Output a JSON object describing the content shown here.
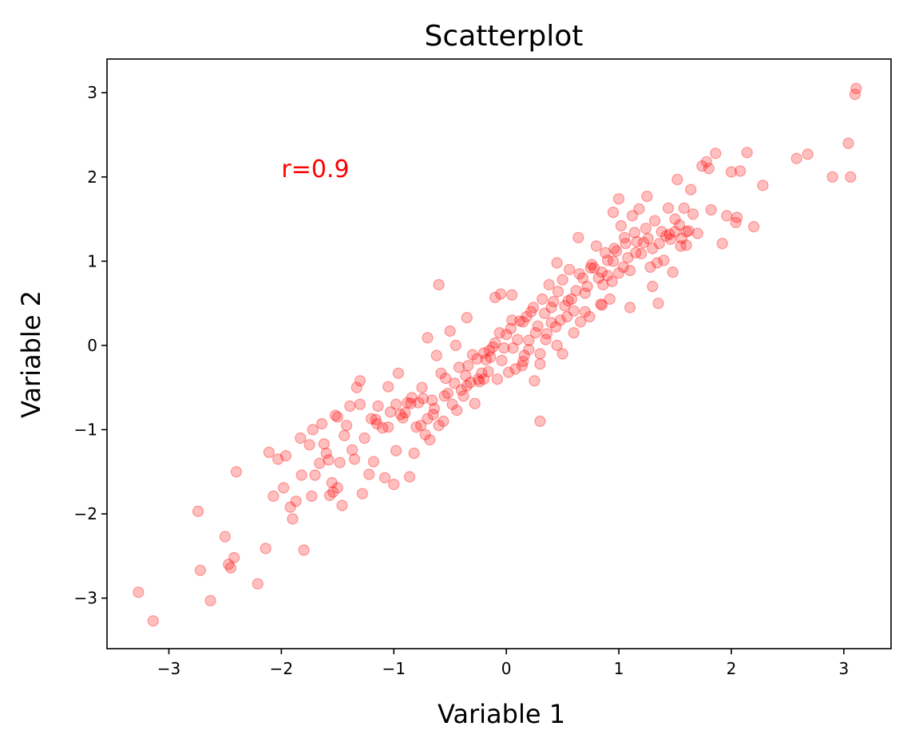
{
  "chart_data": {
    "type": "scatter",
    "title": "Scatterplot",
    "xlabel": "Variable 1",
    "ylabel": "Variable 2",
    "xlim": [
      -3.55,
      3.42
    ],
    "ylim": [
      -3.6,
      3.4
    ],
    "xticks": [
      -3,
      -2,
      -1,
      0,
      1,
      2,
      3
    ],
    "yticks": [
      -3,
      -2,
      -1,
      0,
      1,
      2,
      3
    ],
    "xtick_labels": [
      "−3",
      "−2",
      "−1",
      "0",
      "1",
      "2",
      "3"
    ],
    "ytick_labels": [
      "−3",
      "−2",
      "−1",
      "0",
      "1",
      "2",
      "3"
    ],
    "grid": false,
    "marker_color": "#ff0000",
    "marker_alpha": 0.25,
    "annotation": {
      "text": "r=0.9",
      "x": -2.0,
      "y": 2.0,
      "color": "#ff0000"
    },
    "series": [
      {
        "x": [
          -3.27,
          -3.14,
          -2.74,
          -2.72,
          -2.63,
          -2.5,
          -2.47,
          -2.45,
          -2.42,
          -2.4,
          -2.21,
          -2.14,
          -2.11,
          -2.07,
          -2.03,
          -1.98,
          -1.96,
          -1.92,
          -1.9,
          -1.87,
          -1.83,
          -1.82,
          -1.8,
          -1.75,
          -1.73,
          -1.72,
          -1.7,
          -1.66,
          -1.64,
          -1.62,
          -1.6,
          -1.58,
          -1.57,
          -1.55,
          -1.54,
          -1.52,
          -1.5,
          -1.48,
          -1.46,
          -1.44,
          -1.42,
          -1.39,
          -1.37,
          -1.35,
          -1.33,
          -1.3,
          -1.28,
          -1.26,
          -1.22,
          -1.2,
          -1.18,
          -1.16,
          -1.14,
          -1.1,
          -1.08,
          -1.05,
          -1.03,
          -1.0,
          -0.98,
          -0.96,
          -0.94,
          -0.92,
          -0.9,
          -0.88,
          -0.86,
          -0.84,
          -0.82,
          -0.8,
          -0.78,
          -0.76,
          -0.74,
          -0.72,
          -0.7,
          -0.68,
          -0.66,
          -0.64,
          -0.62,
          -0.6,
          -0.58,
          -0.56,
          -0.54,
          -0.52,
          -0.5,
          -0.48,
          -0.46,
          -0.44,
          -0.42,
          -0.4,
          -0.38,
          -0.36,
          -0.34,
          -0.32,
          -0.3,
          -0.28,
          -0.26,
          -0.24,
          -0.22,
          -0.2,
          -0.18,
          -0.16,
          -0.14,
          -0.12,
          -0.1,
          -0.08,
          -0.06,
          -0.04,
          -0.02,
          0.0,
          0.02,
          0.04,
          0.06,
          0.08,
          0.1,
          0.12,
          0.14,
          0.16,
          0.18,
          0.2,
          0.22,
          0.24,
          0.26,
          0.28,
          0.3,
          0.32,
          0.34,
          0.36,
          0.38,
          0.4,
          0.42,
          0.44,
          0.46,
          0.48,
          0.5,
          0.52,
          0.54,
          0.56,
          0.58,
          0.6,
          0.62,
          0.64,
          0.66,
          0.68,
          0.7,
          0.72,
          0.74,
          0.76,
          0.78,
          0.8,
          0.82,
          0.84,
          0.86,
          0.88,
          0.9,
          0.92,
          0.94,
          0.96,
          0.98,
          1.0,
          1.02,
          1.04,
          1.06,
          1.08,
          1.1,
          1.12,
          1.14,
          1.16,
          1.18,
          1.2,
          1.22,
          1.24,
          1.26,
          1.28,
          1.3,
          1.32,
          1.34,
          1.36,
          1.38,
          1.4,
          1.42,
          1.44,
          1.46,
          1.48,
          1.5,
          1.52,
          1.54,
          1.56,
          1.58,
          1.6,
          1.62,
          1.64,
          1.66,
          1.7,
          1.74,
          1.78,
          1.82,
          1.86,
          1.92,
          1.96,
          2.0,
          2.04,
          2.08,
          2.14,
          2.2,
          2.28,
          2.58,
          2.68,
          2.9,
          3.04,
          3.06,
          3.1,
          3.11,
          -0.98,
          -0.6,
          -0.35,
          0.05,
          0.3,
          0.45,
          0.75,
          1.05,
          1.5,
          -1.3,
          -0.7,
          0.15,
          0.55,
          0.95,
          1.35,
          -0.15,
          0.35,
          0.65,
          1.25,
          -0.45,
          0.25,
          0.85,
          1.45,
          -1.15,
          -0.25,
          0.45,
          1.15,
          -0.05,
          0.6,
          -0.55,
          0.15,
          0.95,
          -0.85,
          0.4,
          1.6,
          -1.5,
          -0.35,
          0.7,
          1.3,
          -0.65,
          -0.1,
          0.5,
          1.1,
          1.8,
          -1.05,
          0.05,
          0.85,
          2.05,
          -0.2,
          0.3,
          0.9,
          1.55,
          -0.75,
          0.2,
          1.0
        ],
        "y": [
          -2.93,
          -3.27,
          -1.97,
          -2.67,
          -3.03,
          -2.27,
          -2.6,
          -2.64,
          -2.52,
          -1.5,
          -2.83,
          -2.41,
          -1.27,
          -1.79,
          -1.35,
          -1.69,
          -1.31,
          -1.92,
          -2.06,
          -1.85,
          -1.1,
          -1.54,
          -2.43,
          -1.18,
          -1.79,
          -1.0,
          -1.54,
          -1.4,
          -0.93,
          -1.17,
          -1.28,
          -1.36,
          -1.78,
          -1.63,
          -1.74,
          -0.83,
          -1.69,
          -1.39,
          -1.9,
          -1.07,
          -0.95,
          -0.72,
          -1.24,
          -1.35,
          -0.5,
          -0.7,
          -1.76,
          -1.1,
          -1.53,
          -0.87,
          -1.38,
          -0.88,
          -0.72,
          -0.98,
          -1.57,
          -0.97,
          -0.79,
          -1.65,
          -1.25,
          -0.33,
          -0.82,
          -0.86,
          -0.8,
          -0.68,
          -1.56,
          -0.62,
          -1.28,
          -0.97,
          -0.68,
          -0.95,
          -0.63,
          -1.06,
          -0.87,
          -1.12,
          -0.65,
          -0.75,
          -0.12,
          -0.95,
          -0.33,
          -0.9,
          -0.39,
          -0.57,
          0.17,
          -0.7,
          -0.45,
          -0.77,
          -0.26,
          -0.53,
          -0.6,
          -0.36,
          -0.24,
          -0.44,
          -0.11,
          -0.69,
          -0.16,
          -0.43,
          -0.33,
          -0.09,
          -0.17,
          -0.31,
          -0.14,
          -0.02,
          0.03,
          -0.4,
          0.15,
          -0.18,
          -0.03,
          0.13,
          -0.32,
          0.2,
          -0.03,
          -0.28,
          0.07,
          0.29,
          -0.24,
          -0.12,
          0.34,
          -0.05,
          0.4,
          0.45,
          0.15,
          0.23,
          -0.22,
          0.55,
          0.38,
          0.14,
          0.72,
          0.45,
          0.52,
          0.22,
          0.64,
          0.3,
          0.78,
          0.47,
          0.34,
          0.9,
          0.55,
          0.41,
          0.65,
          1.28,
          0.28,
          0.8,
          0.62,
          0.7,
          0.34,
          0.96,
          0.92,
          1.18,
          0.8,
          0.49,
          0.72,
          1.1,
          0.83,
          0.55,
          0.76,
          1.15,
          1.12,
          0.86,
          1.42,
          0.93,
          1.21,
          1.04,
          0.89,
          1.54,
          1.34,
          1.23,
          1.62,
          1.09,
          1.22,
          1.39,
          1.27,
          0.93,
          1.15,
          1.48,
          0.98,
          1.21,
          1.35,
          1.01,
          1.3,
          1.63,
          1.26,
          0.87,
          1.5,
          1.97,
          1.43,
          1.27,
          1.63,
          1.19,
          1.36,
          1.85,
          1.56,
          1.33,
          2.13,
          2.18,
          1.61,
          2.28,
          1.21,
          1.54,
          2.06,
          1.46,
          2.07,
          2.29,
          1.41,
          1.9,
          2.22,
          2.27,
          2.0,
          2.4,
          2.0,
          2.98,
          3.05,
          -0.7,
          0.72,
          0.33,
          0.6,
          -0.9,
          0.0,
          0.92,
          1.28,
          1.35,
          -0.42,
          0.09,
          0.28,
          0.53,
          1.0,
          0.5,
          -0.06,
          0.07,
          0.85,
          1.77,
          0.0,
          -0.42,
          0.48,
          1.32,
          -0.93,
          -0.4,
          0.98,
          1.1,
          0.61,
          0.15,
          -0.6,
          -0.19,
          1.58,
          -0.69,
          0.27,
          1.35,
          -0.85,
          -0.48,
          0.4,
          0.7,
          -0.82,
          0.57,
          -0.1,
          0.45,
          2.1,
          -0.49,
          0.3,
          0.87,
          1.52,
          -0.4,
          -0.1,
          1.01,
          1.18,
          -0.5,
          0.06,
          1.74
        ]
      }
    ]
  }
}
